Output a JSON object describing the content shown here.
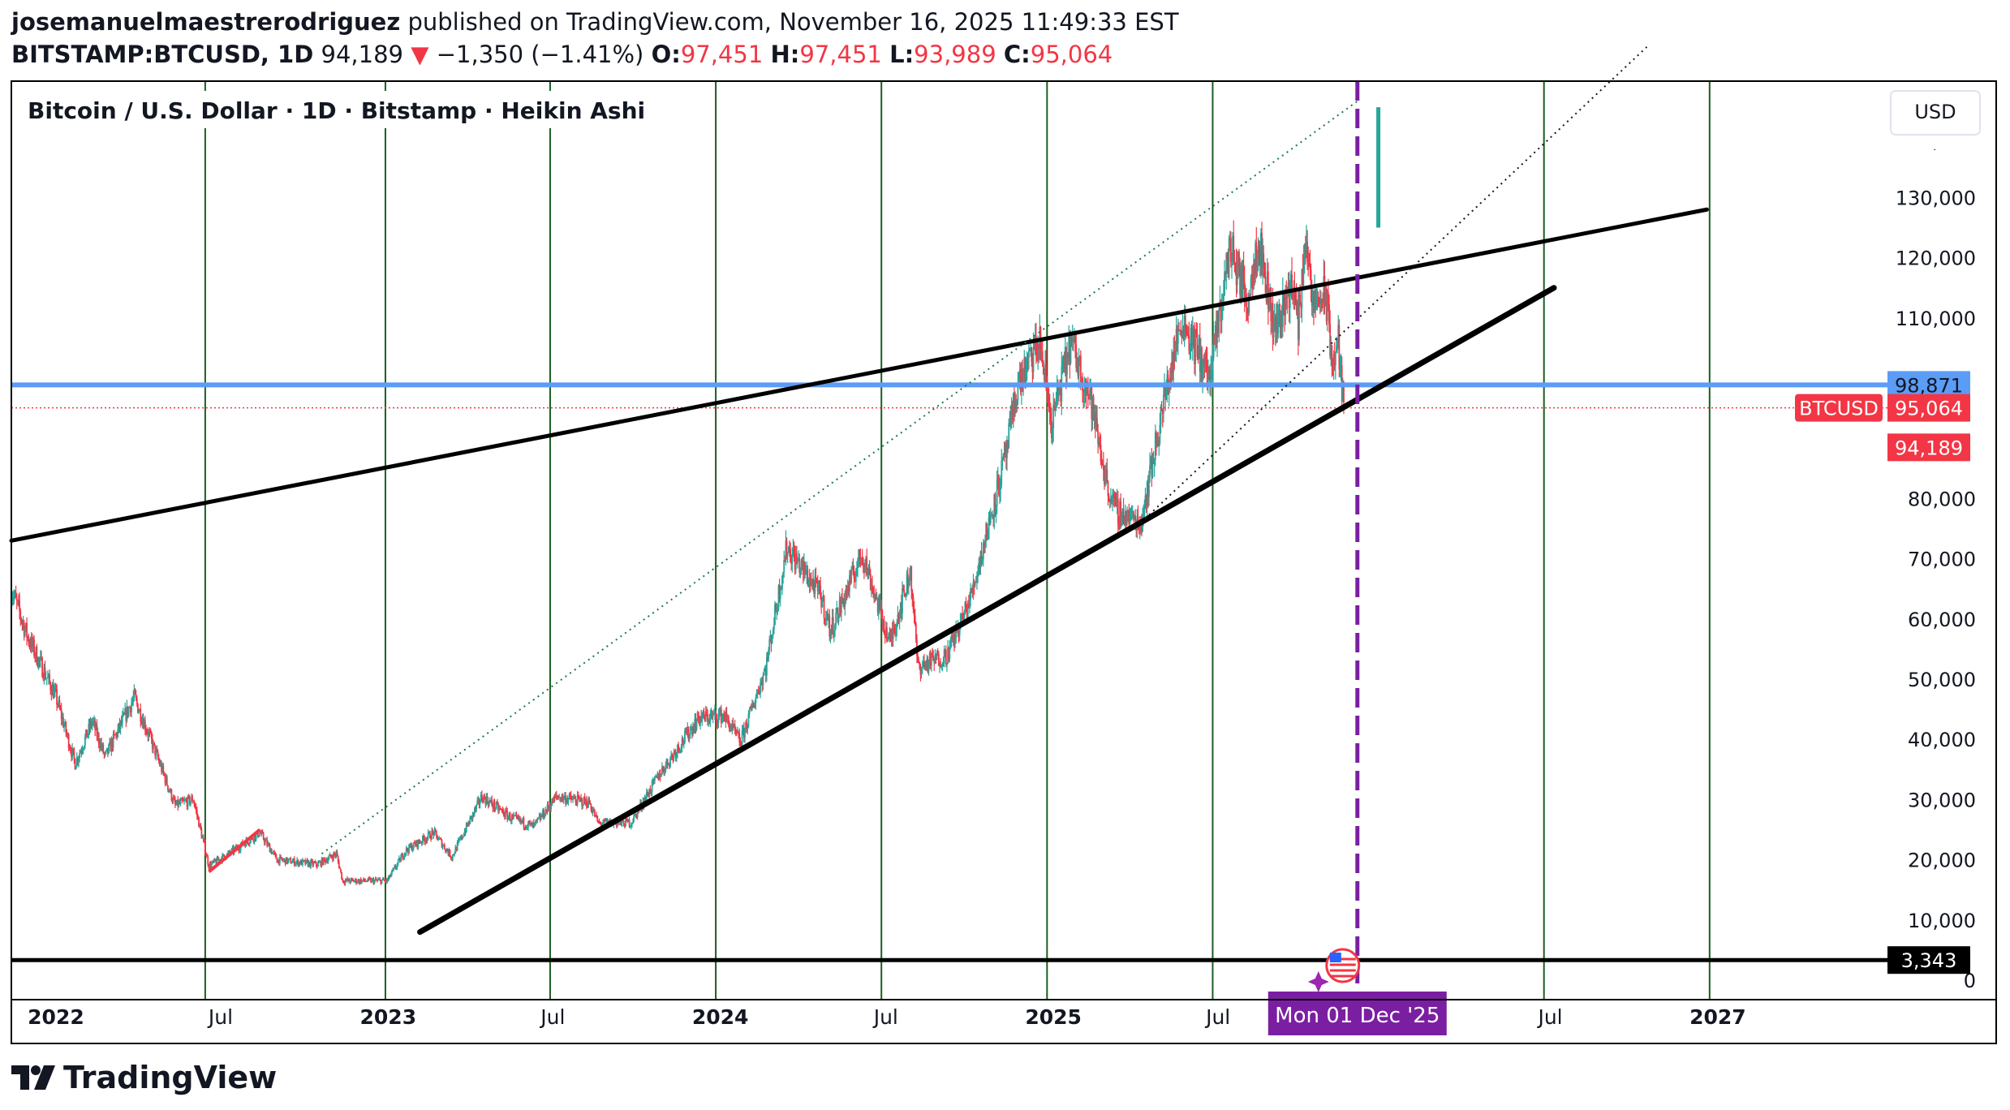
{
  "header": {
    "author": "josemanuelmaestrerodriguez",
    "published": "published on TradingView.com, November 16, 2025 11:49:33 EST",
    "symbol": "BITSTAMP:BTCUSD, 1D",
    "last": "94,189",
    "change": "−1,350 (−1.41%)",
    "o_label": "O:",
    "o": "97,451",
    "h_label": "H:",
    "h": "97,451",
    "l_label": "L:",
    "l": "93,989",
    "c_label": "C:",
    "c": "95,064"
  },
  "footer": {
    "brand": "TradingView"
  },
  "colors": {
    "up": "#26a69a",
    "down": "#f23645",
    "blue_line": "#5b9cf6",
    "purple": "#7b1fa2",
    "axis_text": "#131722",
    "vgrid": "#1b5e20"
  },
  "chart_data": {
    "type": "candlestick",
    "title": "Bitcoin / U.S. Dollar · 1D · Bitstamp · Heikin Ashi",
    "currency": "USD",
    "y_scale": "linear",
    "ylim": [
      0,
      140000
    ],
    "y_ticks": [
      {
        "value": 0,
        "label": "0"
      },
      {
        "value": 10000,
        "label": "10,000"
      },
      {
        "value": 20000,
        "label": "20,000"
      },
      {
        "value": 30000,
        "label": "30,000"
      },
      {
        "value": 40000,
        "label": "40,000"
      },
      {
        "value": 50000,
        "label": "50,000"
      },
      {
        "value": 60000,
        "label": "60,000"
      },
      {
        "value": 70000,
        "label": "70,000"
      },
      {
        "value": 80000,
        "label": "80,000"
      },
      {
        "value": 110000,
        "label": "110,000"
      },
      {
        "value": 120000,
        "label": "120,000"
      },
      {
        "value": 130000,
        "label": "130,000"
      }
    ],
    "x_range": [
      "2021-11-13",
      "2027-07-10"
    ],
    "x_ticks": [
      {
        "date": "2022-01-01",
        "label": "2022",
        "bold": true
      },
      {
        "date": "2022-07-01",
        "label": "Jul",
        "bold": false
      },
      {
        "date": "2023-01-01",
        "label": "2023",
        "bold": true
      },
      {
        "date": "2023-07-01",
        "label": "Jul",
        "bold": false
      },
      {
        "date": "2024-01-01",
        "label": "2024",
        "bold": true
      },
      {
        "date": "2024-07-01",
        "label": "Jul",
        "bold": false
      },
      {
        "date": "2025-01-01",
        "label": "2025",
        "bold": true
      },
      {
        "date": "2025-07-01",
        "label": "Jul",
        "bold": false
      },
      {
        "date": "2026-07-01",
        "label": "Jul",
        "bold": false
      },
      {
        "date": "2027-01-01",
        "label": "2027",
        "bold": true
      }
    ],
    "vertical_lines": [
      "2022-06-14",
      "2022-12-29",
      "2023-06-28",
      "2023-12-27",
      "2024-06-26",
      "2024-12-25",
      "2025-06-25",
      "2026-06-24",
      "2026-12-23"
    ],
    "crosshair": {
      "date": "2025-12-01",
      "label": "Mon 01 Dec '25"
    },
    "series": [
      {
        "name": "BTCUSD",
        "points": [
          [
            "2021-11-13",
            65000
          ],
          [
            "2021-12-01",
            57000
          ],
          [
            "2022-01-01",
            47000
          ],
          [
            "2022-01-22",
            36000
          ],
          [
            "2022-02-10",
            43000
          ],
          [
            "2022-02-24",
            37000
          ],
          [
            "2022-03-28",
            47000
          ],
          [
            "2022-04-15",
            40000
          ],
          [
            "2022-05-12",
            29000
          ],
          [
            "2022-06-01",
            30000
          ],
          [
            "2022-06-18",
            19000
          ],
          [
            "2022-07-10",
            21000
          ],
          [
            "2022-08-13",
            24500
          ],
          [
            "2022-09-01",
            20000
          ],
          [
            "2022-10-15",
            19200
          ],
          [
            "2022-11-05",
            21000
          ],
          [
            "2022-11-12",
            16500
          ],
          [
            "2022-12-31",
            16500
          ],
          [
            "2023-01-20",
            21500
          ],
          [
            "2023-02-20",
            24500
          ],
          [
            "2023-03-12",
            20500
          ],
          [
            "2023-04-14",
            30500
          ],
          [
            "2023-05-15",
            27000
          ],
          [
            "2023-06-10",
            25500
          ],
          [
            "2023-07-05",
            30500
          ],
          [
            "2023-08-10",
            29500
          ],
          [
            "2023-08-20",
            26000
          ],
          [
            "2023-09-25",
            26200
          ],
          [
            "2023-10-25",
            34000
          ],
          [
            "2023-12-08",
            43500
          ],
          [
            "2024-01-05",
            44000
          ],
          [
            "2024-01-23",
            39500
          ],
          [
            "2024-02-20",
            52000
          ],
          [
            "2024-03-14",
            72000
          ],
          [
            "2024-04-20",
            64000
          ],
          [
            "2024-05-01",
            58000
          ],
          [
            "2024-06-05",
            71000
          ],
          [
            "2024-07-05",
            56000
          ],
          [
            "2024-07-28",
            68000
          ],
          [
            "2024-08-05",
            52000
          ],
          [
            "2024-09-06",
            54000
          ],
          [
            "2024-10-01",
            63000
          ],
          [
            "2024-11-11",
            88000
          ],
          [
            "2024-11-22",
            98500
          ],
          [
            "2024-12-17",
            106000
          ],
          [
            "2024-12-30",
            92500
          ],
          [
            "2025-01-20",
            106000
          ],
          [
            "2025-02-10",
            97000
          ],
          [
            "2025-02-28",
            83000
          ],
          [
            "2025-03-10",
            78000
          ],
          [
            "2025-04-07",
            76000
          ],
          [
            "2025-05-01",
            95000
          ],
          [
            "2025-05-22",
            110000
          ],
          [
            "2025-06-22",
            100000
          ],
          [
            "2025-07-14",
            122000
          ],
          [
            "2025-08-02",
            113000
          ],
          [
            "2025-08-14",
            123500
          ],
          [
            "2025-09-01",
            108000
          ],
          [
            "2025-09-20",
            116000
          ],
          [
            "2025-09-27",
            109000
          ],
          [
            "2025-10-06",
            125000
          ],
          [
            "2025-10-11",
            112000
          ],
          [
            "2025-10-27",
            114000
          ],
          [
            "2025-11-04",
            102000
          ],
          [
            "2025-11-10",
            106000
          ],
          [
            "2025-11-16",
            94189
          ]
        ]
      }
    ],
    "trendlines": [
      {
        "name": "upper-channel",
        "from": [
          "2021-11-13",
          73000
        ],
        "to": [
          "2026-12-20",
          128000
        ],
        "width": 5
      },
      {
        "name": "lower-channel",
        "from": [
          "2023-02-05",
          8000
        ],
        "to": [
          "2026-07-05",
          115000
        ],
        "width": 7
      },
      {
        "name": "dotted-green-arc",
        "from": [
          "2022-10-20",
          21000
        ],
        "to": [
          "2025-12-01",
          146000
        ],
        "style": "dotted-green"
      },
      {
        "name": "dotted-black-diagonal",
        "from": [
          "2025-04-07",
          76000
        ],
        "to": [
          "2026-10-15",
          155000
        ],
        "style": "dotted-black"
      },
      {
        "name": "short-red-segment",
        "from": [
          "2022-06-18",
          18000
        ],
        "to": [
          "2022-08-13",
          25000
        ],
        "style": "red"
      }
    ],
    "horizontal_lines": [
      {
        "value": 98871,
        "label": "98,871",
        "color": "#5b9cf6"
      },
      {
        "value": 95064,
        "label": "95,064",
        "color": "#f23645",
        "style": "dotted",
        "tag": "BTCUSD"
      },
      {
        "value": 3343,
        "label": "3,343",
        "color": "#000000"
      }
    ],
    "price_labels": [
      {
        "value": 94189,
        "label": "94,189"
      }
    ],
    "marker_vertical": {
      "date": "2025-12-24",
      "from": 125000,
      "to": 145000
    }
  }
}
